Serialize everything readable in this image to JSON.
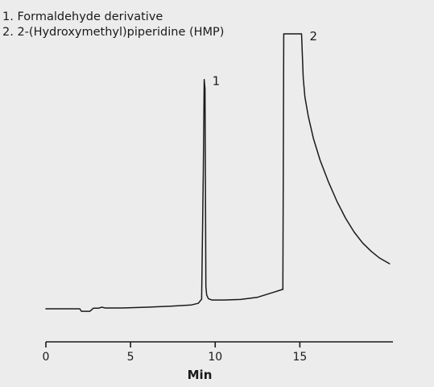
{
  "chart_data": {
    "type": "line",
    "title": "",
    "xlabel": "Min",
    "ylabel": "",
    "xlim": [
      0,
      20.5
    ],
    "ylim": [
      0,
      100
    ],
    "x_ticks": [
      0,
      5,
      10,
      15
    ],
    "x_tick_labels": [
      "0",
      "5",
      "10",
      "15"
    ],
    "grid": false,
    "legend": [
      {
        "number": "1.",
        "text": "Formaldehyde derivative"
      },
      {
        "number": "2.",
        "text": "2-(Hydroxymethyl)piperidine (HMP)"
      }
    ],
    "peaks": [
      {
        "label": "1",
        "x": 9.4,
        "y": 83.4
      },
      {
        "label": "2",
        "x": 15.1,
        "y": 100
      }
    ],
    "series": [
      {
        "x": [
          0,
          2.0,
          2.1,
          2.6,
          2.8,
          3.1,
          3.3,
          3.5,
          4.5,
          6.0,
          7.5,
          8.6,
          9.0,
          9.2,
          9.3,
          9.35,
          9.4,
          9.45,
          9.5,
          9.6,
          9.8,
          10.5,
          11.5,
          12.5,
          13.5,
          13.95,
          14.0,
          14.05,
          15.0,
          15.1,
          15.2,
          15.3,
          15.5,
          15.8,
          16.2,
          16.7,
          17.2,
          17.7,
          18.2,
          18.7,
          19.2,
          19.7,
          20.3
        ],
        "y": [
          0,
          0,
          -0.9,
          -0.9,
          0.2,
          0.2,
          0.6,
          0.3,
          0.3,
          0.6,
          1.0,
          1.4,
          2.0,
          3.5,
          50,
          83.4,
          80,
          8,
          5,
          3.7,
          3.2,
          3.2,
          3.4,
          4.2,
          6.1,
          7.0,
          7.0,
          100,
          100,
          100,
          84,
          77,
          70,
          62,
          54,
          46,
          39,
          33,
          28,
          24,
          21,
          18.5,
          16.4
        ]
      }
    ]
  }
}
